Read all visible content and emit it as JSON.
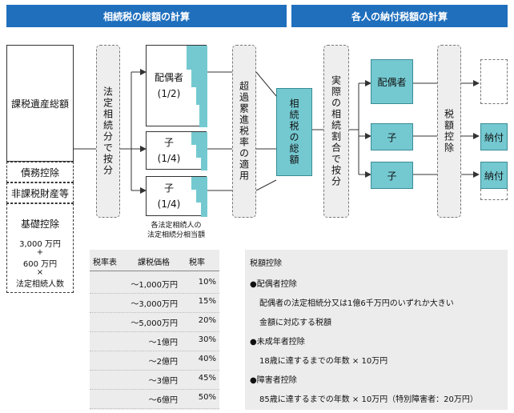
{
  "headers": {
    "left": "相続税の総額の計算",
    "right": "各人の納付税額の計算"
  },
  "left_column": {
    "taxable_total": "課税遺産総額",
    "debt_deduction": "債務控除",
    "non_taxable": "非課税財産等",
    "basic_deduction_title": "基礎控除",
    "basic_line1": "3,000 万円",
    "basic_line2": "+",
    "basic_line3": "600 万円",
    "basic_line4": "×",
    "basic_line5": "法定相続人数"
  },
  "steps": {
    "split_by_legal": "法定相続分で按分",
    "progressive_rate": "超過累進税率の適用",
    "total_tax": "相続税の総額",
    "split_by_actual": "実際の相続割合で按分",
    "tax_credit": "税額控除"
  },
  "heirs": [
    {
      "name": "配偶者",
      "share": "(1/2)"
    },
    {
      "name": "子",
      "share": "(1/4)"
    },
    {
      "name": "子",
      "share": "(1/4)"
    }
  ],
  "heirs_caption_line1": "各法定相続人の",
  "heirs_caption_line2": "法定相続分相当額",
  "actual_heirs": [
    "配偶者",
    "子",
    "子"
  ],
  "payments": [
    "",
    "納付",
    "納付"
  ],
  "rate_table": {
    "title": "税率表",
    "col_price": "課税価格",
    "col_rate": "税率",
    "rows": [
      {
        "price": "〜1,000万円",
        "rate": "10%"
      },
      {
        "price": "〜3,000万円",
        "rate": "15%"
      },
      {
        "price": "〜5,000万円",
        "rate": "20%"
      },
      {
        "price": "〜1億円",
        "rate": "30%"
      },
      {
        "price": "〜2億円",
        "rate": "40%"
      },
      {
        "price": "〜3億円",
        "rate": "45%"
      },
      {
        "price": "〜6億円",
        "rate": "50%"
      }
    ]
  },
  "tax_credits": {
    "title": "税額控除",
    "spouse_title": "●配偶者控除",
    "spouse_line1": "配偶者の法定相続分又は1億6千万円のいずれか大きい",
    "spouse_line2": "金額に対応する税額",
    "minor_title": "●未成年者控除",
    "minor_line": "18歳に達するまでの年数 × 10万円",
    "disabled_title": "●障害者控除",
    "disabled_line": "85歳に達するまでの年数 × 10万円（特別障害者：20万円）"
  }
}
